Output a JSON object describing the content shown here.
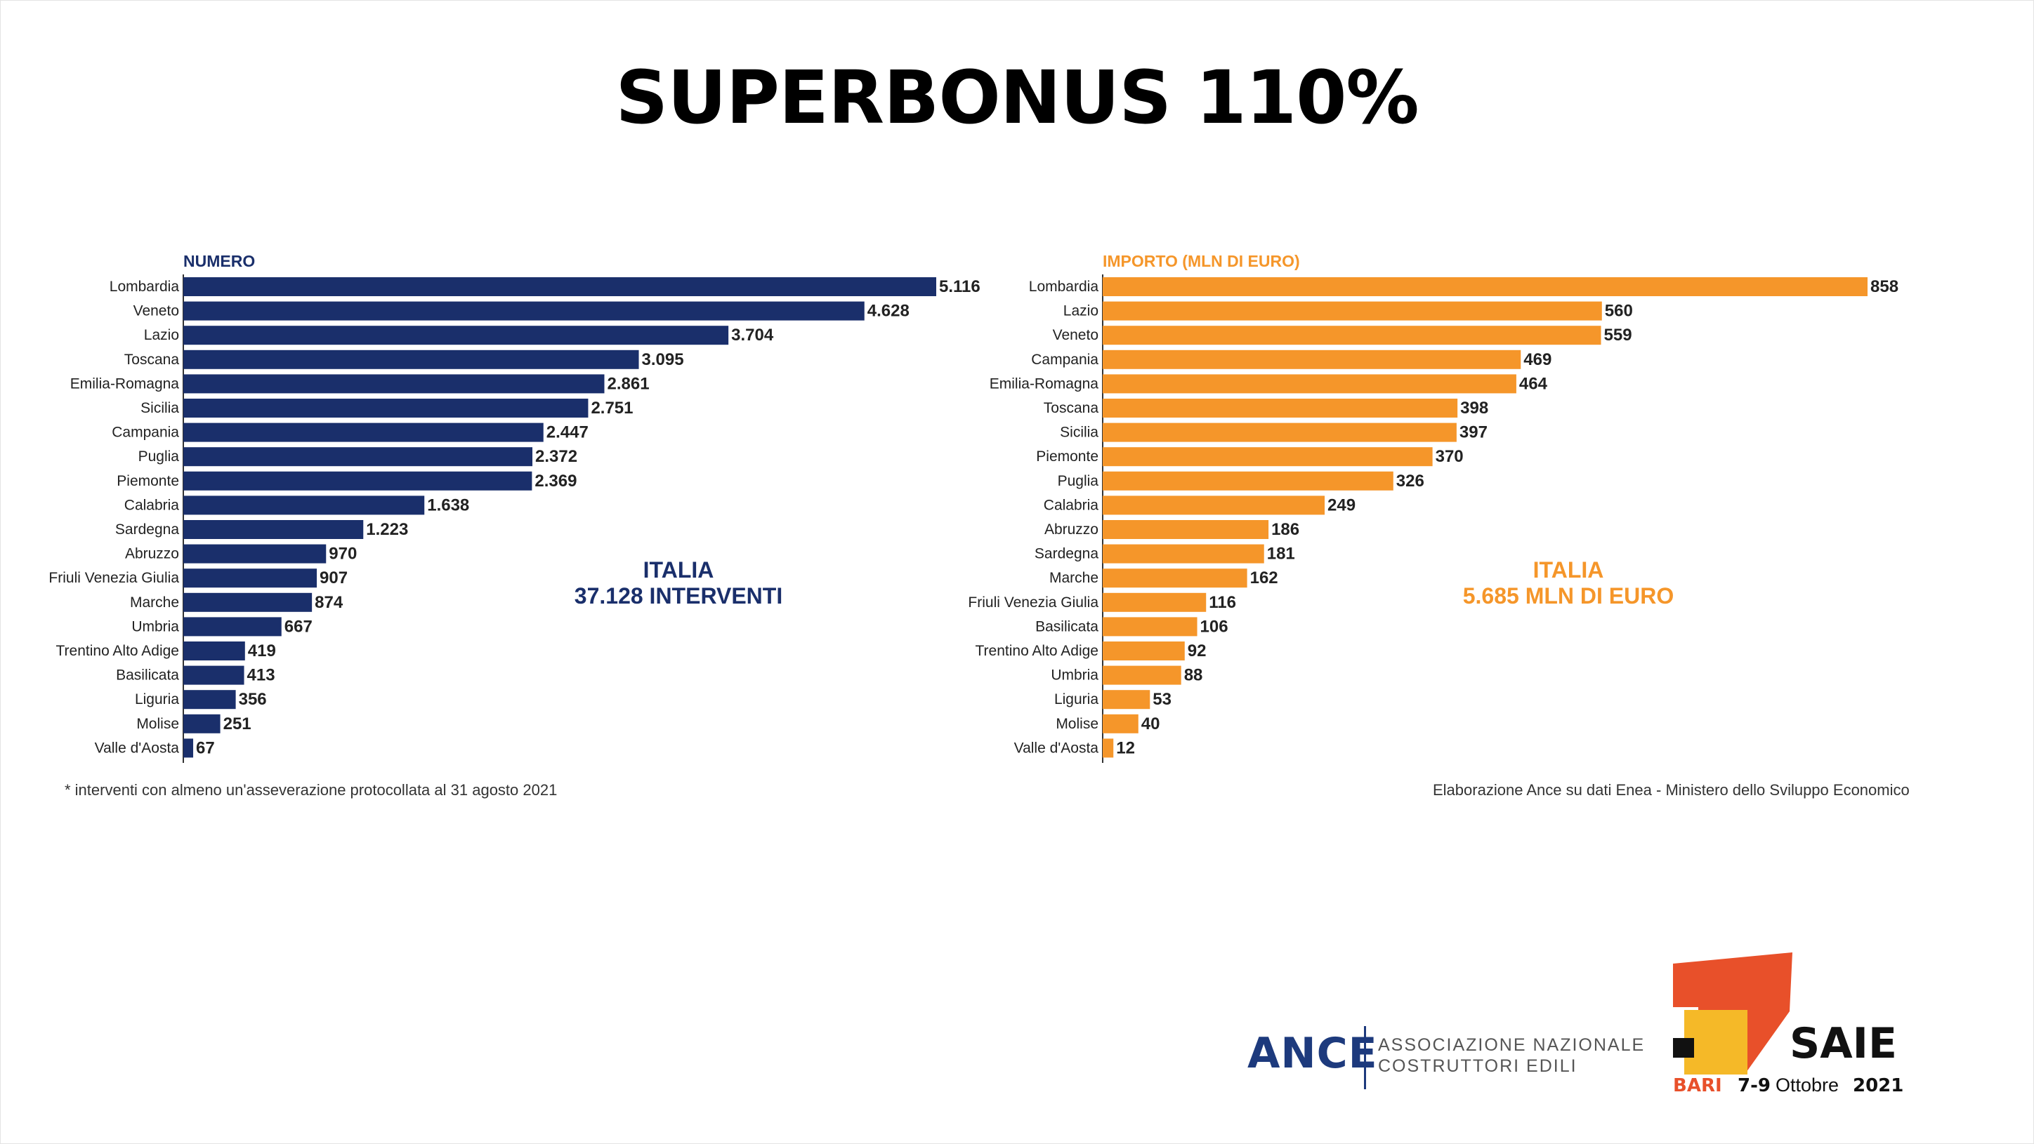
{
  "title": "SUPERBONUS 110%",
  "colors": {
    "navy": "#1a2f6b",
    "orange": "#f5962a",
    "ance_blue": "#1d3a7d",
    "saie_red": "#e8502a",
    "saie_yellow": "#f5b928"
  },
  "chart_data": [
    {
      "type": "bar",
      "orientation": "horizontal",
      "title": "NUMERO",
      "categories": [
        "Lombardia",
        "Veneto",
        "Lazio",
        "Toscana",
        "Emilia-Romagna",
        "Sicilia",
        "Campania",
        "Puglia",
        "Piemonte",
        "Calabria",
        "Sardegna",
        "Abruzzo",
        "Friuli Venezia Giulia",
        "Marche",
        "Umbria",
        "Trentino Alto Adige",
        "Basilicata",
        "Liguria",
        "Molise",
        "Valle d'Aosta"
      ],
      "values": [
        5116,
        4628,
        3704,
        3095,
        2861,
        2751,
        2447,
        2372,
        2369,
        1638,
        1223,
        970,
        907,
        874,
        667,
        419,
        413,
        356,
        251,
        67
      ],
      "value_labels": [
        "5.116",
        "4.628",
        "3.704",
        "3.095",
        "2.861",
        "2.751",
        "2.447",
        "2.372",
        "2.369",
        "1.638",
        "1.223",
        "970",
        "907",
        "874",
        "667",
        "419",
        "413",
        "356",
        "251",
        "67"
      ],
      "annotation": [
        "ITALIA",
        "37.128 INTERVENTI"
      ]
    },
    {
      "type": "bar",
      "orientation": "horizontal",
      "title": "IMPORTO (MLN DI EURO)",
      "categories": [
        "Lombardia",
        "Lazio",
        "Veneto",
        "Campania",
        "Emilia-Romagna",
        "Toscana",
        "Sicilia",
        "Piemonte",
        "Puglia",
        "Calabria",
        "Abruzzo",
        "Sardegna",
        "Marche",
        "Friuli Venezia Giulia",
        "Basilicata",
        "Trentino Alto Adige",
        "Umbria",
        "Liguria",
        "Molise",
        "Valle d'Aosta"
      ],
      "values": [
        858,
        560,
        559,
        469,
        464,
        398,
        397,
        370,
        326,
        249,
        186,
        181,
        162,
        116,
        106,
        92,
        88,
        53,
        40,
        12
      ],
      "value_labels": [
        "858",
        "560",
        "559",
        "469",
        "464",
        "398",
        "397",
        "370",
        "326",
        "249",
        "186",
        "181",
        "162",
        "116",
        "106",
        "92",
        "88",
        "53",
        "40",
        "12"
      ],
      "annotation": [
        "ITALIA",
        "5.685 MLN DI EURO"
      ]
    }
  ],
  "footnote_left": "* interventi con almeno un'asseverazione protocollata al 31 agosto 2021",
  "footnote_right": "Elaborazione Ance su dati Enea - Ministero dello Sviluppo Economico",
  "ance": {
    "name": "ANCE",
    "line1": "ASSOCIAZIONE NAZIONALE",
    "line2": "COSTRUTTORI EDILI"
  },
  "saie": {
    "name": "SAIE",
    "city": "BARI",
    "dates": "7-9",
    "month": "Ottobre",
    "year": "2021"
  }
}
